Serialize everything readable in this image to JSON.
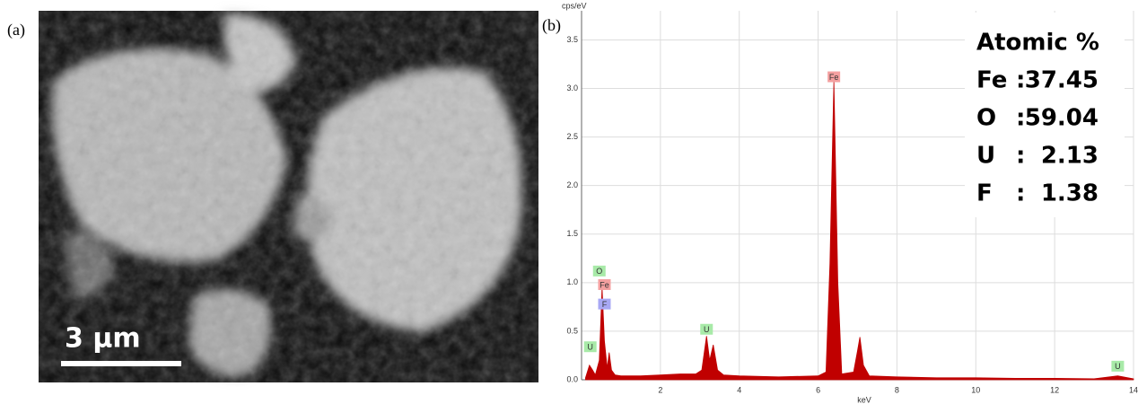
{
  "panel_a": {
    "label": "(a)",
    "scale_bar": "3 µm"
  },
  "chart_data": {
    "type": "area",
    "panel_label": "(b)",
    "x_label": "keV",
    "y_label": "cps/eV",
    "color": "#c00000",
    "xlim": [
      0,
      14
    ],
    "xticks": [
      2,
      4,
      6,
      8,
      10,
      12,
      14
    ],
    "ylim": [
      0,
      3.8
    ],
    "yticks": [
      {
        "value": 0,
        "label": "0.0"
      },
      0.5,
      {
        "value": 1,
        "label": "1.0"
      },
      1.5,
      {
        "value": 2,
        "label": "2.0"
      },
      2.5,
      {
        "value": 3,
        "label": "3.0"
      },
      3.5
    ],
    "grid": true,
    "x": [
      0.1,
      0.2,
      0.28,
      0.35,
      0.45,
      0.52,
      0.58,
      0.65,
      0.7,
      0.76,
      0.85,
      1.0,
      1.5,
      2.0,
      2.5,
      2.9,
      3.05,
      3.17,
      3.25,
      3.34,
      3.45,
      3.6,
      4.0,
      5.0,
      6.0,
      6.2,
      6.3,
      6.4,
      6.5,
      6.6,
      6.9,
      7.0,
      7.06,
      7.15,
      7.3,
      8.0,
      9.0,
      10.0,
      11.0,
      12.0,
      13.0,
      13.6,
      14.0
    ],
    "values": [
      0.02,
      0.15,
      0.1,
      0.05,
      0.2,
      0.95,
      0.4,
      0.12,
      0.28,
      0.1,
      0.05,
      0.04,
      0.04,
      0.05,
      0.06,
      0.06,
      0.1,
      0.45,
      0.2,
      0.36,
      0.1,
      0.05,
      0.04,
      0.03,
      0.04,
      0.08,
      1.2,
      3.08,
      1.0,
      0.06,
      0.08,
      0.3,
      0.44,
      0.15,
      0.04,
      0.03,
      0.02,
      0.02,
      0.015,
      0.015,
      0.01,
      0.04,
      0.01
    ],
    "annotations": [
      {
        "text": "Fe",
        "x": 6.4,
        "y": 3.12,
        "color": "#f4a0a0"
      },
      {
        "text": "O",
        "x": 0.45,
        "y": 1.12,
        "color": "#a8eaa8"
      },
      {
        "text": "Fe",
        "x": 0.58,
        "y": 0.98,
        "color": "#f4a0a0"
      },
      {
        "text": "F",
        "x": 0.58,
        "y": 0.78,
        "color": "#a8a8f4"
      },
      {
        "text": "U",
        "x": 3.17,
        "y": 0.52,
        "color": "#a8eaa8"
      },
      {
        "text": "U",
        "x": 0.22,
        "y": 0.34,
        "color": "#a8eaa8"
      },
      {
        "text": "U",
        "x": 13.6,
        "y": 0.14,
        "color": "#a8eaa8"
      }
    ],
    "composition": {
      "title": "Atomic %",
      "separator": ":",
      "rows": [
        {
          "element": "Fe",
          "value": 37.45
        },
        {
          "element": "O",
          "value": 59.04
        },
        {
          "element": "U",
          "value": 2.13
        },
        {
          "element": "F",
          "value": 1.38
        }
      ]
    }
  }
}
